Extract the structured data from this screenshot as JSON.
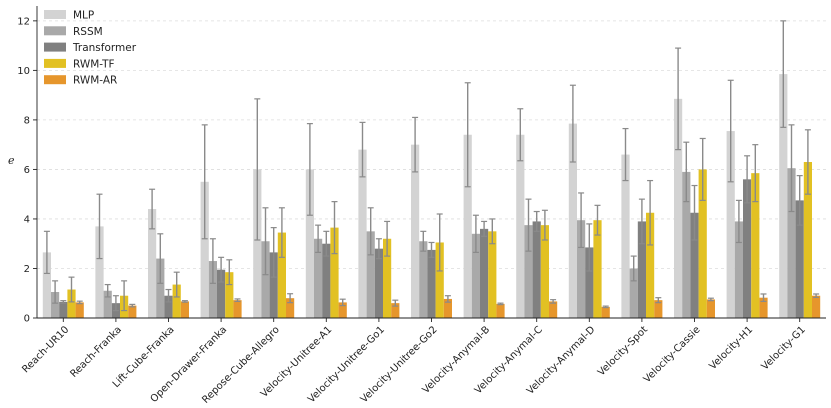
{
  "chart_data": {
    "type": "bar",
    "title": "",
    "xlabel": "",
    "ylabel": "e",
    "ylim": [
      0,
      12.6
    ],
    "yticks": [
      "0",
      "2",
      "4",
      "6",
      "8",
      "10",
      "12"
    ],
    "grid": true,
    "legend_position": "top-left",
    "categories": [
      "Reach-UR10",
      "Reach-Franka",
      "Lift-Cube-Franka",
      "Open-Drawer-Franka",
      "Repose-Cube-Allegro",
      "Velocity-Unitree-A1",
      "Velocity-Unitree-Go1",
      "Velocity-Unitree-Go2",
      "Velocity-Anymal-B",
      "Velocity-Anymal-C",
      "Velocity-Anymal-D",
      "Velocity-Spot",
      "Velocity-Cassie",
      "Velocity-H1",
      "Velocity-G1"
    ],
    "series": [
      {
        "name": "MLP",
        "color": "#d3d3d3",
        "values": [
          2.65,
          3.7,
          4.4,
          5.5,
          6.0,
          6.0,
          6.8,
          7.0,
          7.4,
          7.4,
          7.85,
          6.6,
          8.85,
          7.55,
          9.85
        ],
        "errors": [
          0.85,
          1.3,
          0.8,
          2.3,
          2.85,
          1.85,
          1.1,
          1.1,
          2.1,
          1.05,
          1.55,
          1.05,
          2.05,
          2.05,
          2.15
        ]
      },
      {
        "name": "RSSM",
        "color": "#a9a9a9",
        "values": [
          1.05,
          1.1,
          2.4,
          2.3,
          3.1,
          3.2,
          3.5,
          3.1,
          3.4,
          3.75,
          3.95,
          2.0,
          5.9,
          3.9,
          6.05
        ],
        "errors": [
          0.45,
          0.25,
          1.0,
          0.9,
          1.35,
          0.55,
          0.95,
          0.4,
          0.75,
          1.05,
          1.1,
          0.5,
          1.2,
          0.85,
          1.75
        ]
      },
      {
        "name": "Transformer",
        "color": "#808080",
        "values": [
          0.65,
          0.6,
          0.9,
          1.95,
          2.65,
          3.0,
          2.8,
          2.75,
          3.6,
          3.9,
          2.85,
          3.9,
          4.25,
          5.6,
          4.75
        ],
        "errors": [
          0.05,
          0.3,
          0.25,
          0.5,
          1.0,
          0.5,
          0.4,
          0.3,
          0.3,
          0.4,
          0.95,
          0.9,
          1.1,
          0.95,
          1.0
        ]
      },
      {
        "name": "RWM-TF",
        "color": "#e2c123",
        "values": [
          1.15,
          0.9,
          1.35,
          1.85,
          3.45,
          3.65,
          3.2,
          3.05,
          3.5,
          3.75,
          3.95,
          4.25,
          6.0,
          5.85,
          6.3
        ],
        "errors": [
          0.5,
          0.6,
          0.5,
          0.5,
          1.0,
          1.05,
          0.7,
          1.15,
          0.5,
          0.6,
          0.6,
          1.3,
          1.25,
          1.15,
          1.3
        ]
      },
      {
        "name": "RWM-AR",
        "color": "#e6962c",
        "values": [
          0.63,
          0.5,
          0.67,
          0.72,
          0.8,
          0.63,
          0.6,
          0.77,
          0.57,
          0.67,
          0.45,
          0.72,
          0.75,
          0.82,
          0.9
        ],
        "errors": [
          0.05,
          0.05,
          0.03,
          0.05,
          0.18,
          0.13,
          0.12,
          0.13,
          0.03,
          0.07,
          0.03,
          0.1,
          0.05,
          0.15,
          0.07
        ]
      }
    ]
  }
}
